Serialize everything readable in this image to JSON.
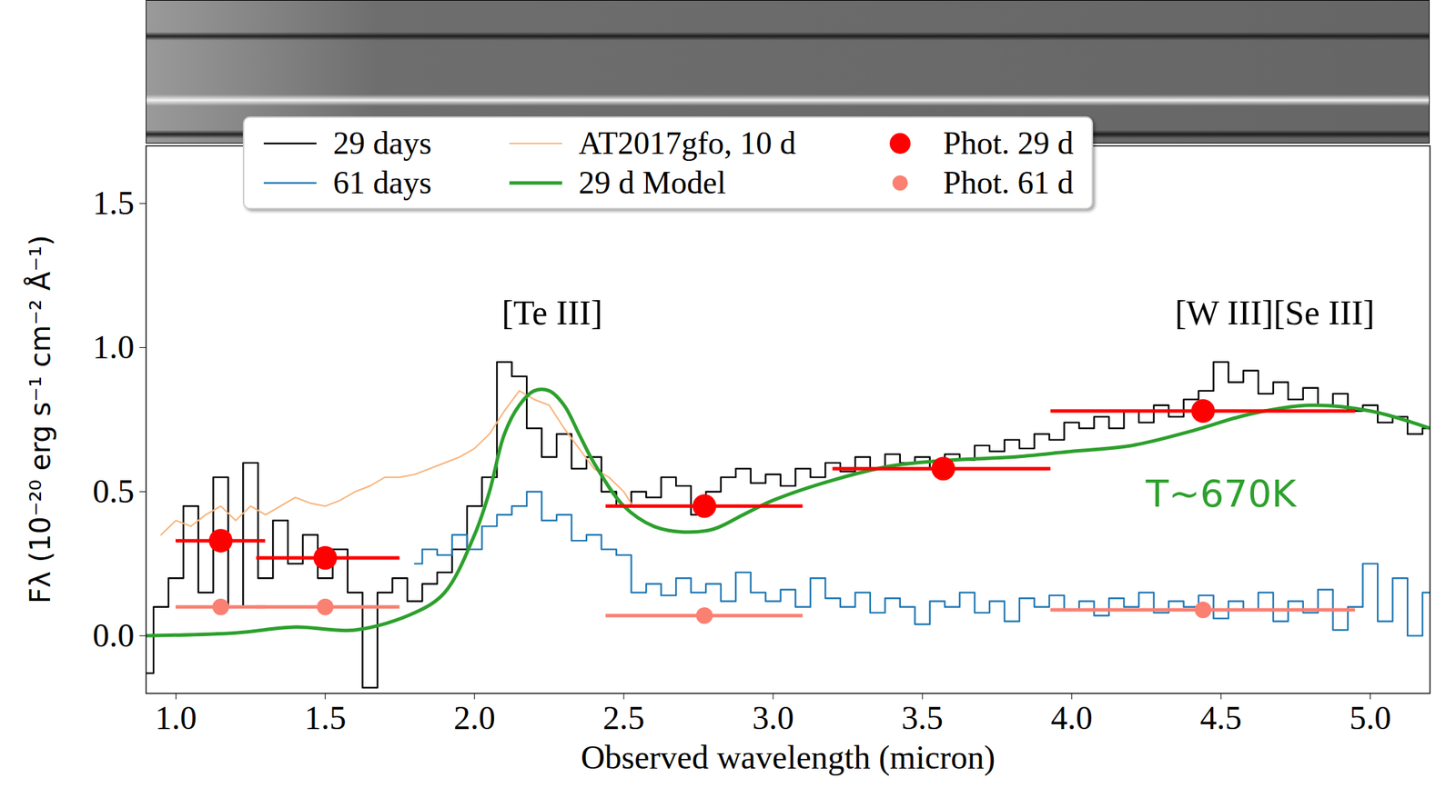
{
  "chart_data": {
    "type": "line",
    "x_label": "Observed wavelength (micron)",
    "y_label": "Fλ (10⁻²⁰ erg s⁻¹ cm⁻² Å⁻¹)",
    "xlim": [
      0.9,
      5.2
    ],
    "xticks": [
      {
        "value": 1,
        "label": "1.0"
      },
      1.5,
      {
        "value": 2,
        "label": "2.0"
      },
      2.5,
      {
        "value": 3,
        "label": "3.0"
      },
      3.5,
      {
        "value": 4,
        "label": "4.0"
      },
      4.5,
      {
        "value": 5,
        "label": "5.0"
      }
    ],
    "ylim": [
      -0.2,
      1.7
    ],
    "yticks": [
      {
        "value": 0,
        "label": "0.0"
      },
      0.5,
      {
        "value": 1,
        "label": "1.0"
      },
      1.5
    ],
    "grid": false,
    "legend": "top",
    "series": [
      {
        "name": "29 days",
        "color": "#000000",
        "type": "line",
        "line_style": "steps",
        "x": [
          0.9,
          0.95,
          1.0,
          1.05,
          1.1,
          1.15,
          1.2,
          1.25,
          1.3,
          1.35,
          1.4,
          1.45,
          1.5,
          1.55,
          1.6,
          1.65,
          1.7,
          1.75,
          1.8,
          1.85,
          1.9,
          1.95,
          2.0,
          2.05,
          2.1,
          2.15,
          2.2,
          2.25,
          2.3,
          2.35,
          2.4,
          2.45,
          2.5,
          2.55,
          2.6,
          2.65,
          2.7,
          2.75,
          2.8,
          2.85,
          2.9,
          2.95,
          3.0,
          3.05,
          3.1,
          3.15,
          3.2,
          3.25,
          3.3,
          3.35,
          3.4,
          3.45,
          3.5,
          3.55,
          3.6,
          3.65,
          3.7,
          3.75,
          3.8,
          3.85,
          3.9,
          3.95,
          4.0,
          4.05,
          4.1,
          4.15,
          4.2,
          4.25,
          4.3,
          4.35,
          4.4,
          4.45,
          4.5,
          4.55,
          4.6,
          4.65,
          4.7,
          4.75,
          4.8,
          4.85,
          4.9,
          4.95,
          5.0,
          5.05,
          5.1,
          5.15,
          5.2
        ],
        "values": [
          -0.13,
          0.1,
          0.2,
          0.45,
          0.15,
          0.55,
          0.1,
          0.6,
          0.2,
          0.4,
          0.25,
          0.35,
          0.2,
          0.3,
          0.15,
          -0.18,
          0.15,
          0.2,
          0.12,
          0.18,
          0.22,
          0.3,
          0.45,
          0.55,
          0.95,
          0.9,
          0.72,
          0.62,
          0.7,
          0.58,
          0.62,
          0.5,
          0.45,
          0.5,
          0.48,
          0.55,
          0.52,
          0.42,
          0.5,
          0.55,
          0.58,
          0.53,
          0.56,
          0.52,
          0.58,
          0.55,
          0.6,
          0.57,
          0.62,
          0.58,
          0.63,
          0.6,
          0.62,
          0.58,
          0.63,
          0.61,
          0.66,
          0.64,
          0.68,
          0.65,
          0.7,
          0.68,
          0.74,
          0.72,
          0.76,
          0.72,
          0.78,
          0.74,
          0.8,
          0.76,
          0.82,
          0.85,
          0.95,
          0.88,
          0.92,
          0.84,
          0.88,
          0.82,
          0.86,
          0.8,
          0.84,
          0.78,
          0.8,
          0.74,
          0.76,
          0.7,
          0.72
        ]
      },
      {
        "name": "61 days",
        "color": "#1f77b4",
        "type": "line",
        "line_style": "steps",
        "x": [
          1.8,
          1.85,
          1.9,
          1.95,
          2.0,
          2.05,
          2.1,
          2.15,
          2.2,
          2.25,
          2.3,
          2.35,
          2.4,
          2.45,
          2.5,
          2.55,
          2.6,
          2.65,
          2.7,
          2.75,
          2.8,
          2.85,
          2.9,
          2.95,
          3.0,
          3.05,
          3.1,
          3.15,
          3.2,
          3.25,
          3.3,
          3.35,
          3.4,
          3.45,
          3.5,
          3.55,
          3.6,
          3.65,
          3.7,
          3.75,
          3.8,
          3.85,
          3.9,
          3.95,
          4.0,
          4.05,
          4.1,
          4.15,
          4.2,
          4.25,
          4.3,
          4.35,
          4.4,
          4.45,
          4.5,
          4.55,
          4.6,
          4.65,
          4.7,
          4.75,
          4.8,
          4.85,
          4.9,
          4.95,
          5.0,
          5.05,
          5.1,
          5.15,
          5.2
        ],
        "values": [
          0.25,
          0.3,
          0.28,
          0.35,
          0.3,
          0.38,
          0.42,
          0.45,
          0.5,
          0.4,
          0.42,
          0.33,
          0.35,
          0.3,
          0.28,
          0.15,
          0.18,
          0.14,
          0.2,
          0.15,
          0.18,
          0.12,
          0.22,
          0.15,
          0.12,
          0.16,
          0.1,
          0.2,
          0.13,
          0.1,
          0.15,
          0.08,
          0.13,
          0.1,
          0.04,
          0.12,
          0.1,
          0.15,
          0.08,
          0.12,
          0.05,
          0.13,
          0.1,
          0.14,
          0.09,
          0.12,
          0.07,
          0.13,
          0.1,
          0.15,
          0.08,
          0.12,
          0.1,
          0.14,
          0.06,
          0.12,
          0.09,
          0.15,
          0.05,
          0.12,
          0.08,
          0.16,
          0.02,
          0.1,
          0.25,
          0.05,
          0.2,
          0.0,
          0.15
        ]
      },
      {
        "name": "AT2017gfo, 10 d",
        "color": "#f9b57c",
        "type": "line",
        "line_style": "solid",
        "x": [
          0.95,
          1.0,
          1.05,
          1.1,
          1.15,
          1.2,
          1.25,
          1.3,
          1.35,
          1.4,
          1.45,
          1.5,
          1.55,
          1.6,
          1.65,
          1.7,
          1.75,
          1.8,
          1.85,
          1.9,
          1.95,
          2.0,
          2.05,
          2.1,
          2.15,
          2.2,
          2.25,
          2.3,
          2.35,
          2.4,
          2.45,
          2.5,
          2.53
        ],
        "values": [
          0.35,
          0.4,
          0.38,
          0.42,
          0.45,
          0.4,
          0.45,
          0.42,
          0.45,
          0.48,
          0.46,
          0.45,
          0.47,
          0.5,
          0.52,
          0.55,
          0.55,
          0.56,
          0.58,
          0.6,
          0.62,
          0.65,
          0.7,
          0.78,
          0.85,
          0.82,
          0.8,
          0.72,
          0.65,
          0.58,
          0.55,
          0.5,
          0.45
        ]
      },
      {
        "name": "29 d Model",
        "color": "#2ca02c",
        "type": "line",
        "line_style": "smooth",
        "x": [
          0.9,
          1.2,
          1.4,
          1.6,
          1.8,
          1.9,
          2.0,
          2.05,
          2.1,
          2.15,
          2.2,
          2.25,
          2.3,
          2.35,
          2.4,
          2.5,
          2.6,
          2.7,
          2.8,
          2.9,
          3.0,
          3.2,
          3.4,
          3.6,
          3.8,
          4.0,
          4.2,
          4.4,
          4.6,
          4.8,
          5.0,
          5.2
        ],
        "values": [
          0.0,
          0.01,
          0.03,
          0.02,
          0.08,
          0.15,
          0.35,
          0.5,
          0.7,
          0.8,
          0.85,
          0.85,
          0.8,
          0.7,
          0.6,
          0.45,
          0.38,
          0.36,
          0.37,
          0.42,
          0.47,
          0.54,
          0.59,
          0.61,
          0.62,
          0.64,
          0.66,
          0.71,
          0.77,
          0.8,
          0.78,
          0.72
        ]
      },
      {
        "name": "Phot. 29 d",
        "color": "#ff0000",
        "type": "scatter",
        "marker": "circle",
        "x": [
          1.15,
          1.5,
          2.77,
          3.57,
          4.44
        ],
        "values": [
          0.33,
          0.27,
          0.45,
          0.58,
          0.78
        ],
        "x_low": [
          1.0,
          1.27,
          2.44,
          3.2,
          3.93
        ],
        "x_high": [
          1.3,
          1.75,
          3.1,
          3.93,
          4.95
        ]
      },
      {
        "name": "Phot. 61 d",
        "color": "#fa8072",
        "type": "scatter",
        "marker": "circle",
        "x": [
          1.15,
          1.5,
          2.77,
          4.44
        ],
        "values": [
          0.1,
          0.1,
          0.07,
          0.09
        ],
        "x_low": [
          1.0,
          1.27,
          2.44,
          3.93
        ],
        "x_high": [
          1.3,
          1.75,
          3.1,
          4.95
        ]
      }
    ],
    "annotations": [
      {
        "text": "[Te III]",
        "x": 2.26,
        "y": 1.12,
        "color": "#000000"
      },
      {
        "text": "[W III][Se III]",
        "x": 4.68,
        "y": 1.12,
        "color": "#000000"
      },
      {
        "text": "T~670K",
        "x": 4.5,
        "y": 0.49,
        "color": "#2ca02c"
      }
    ]
  }
}
